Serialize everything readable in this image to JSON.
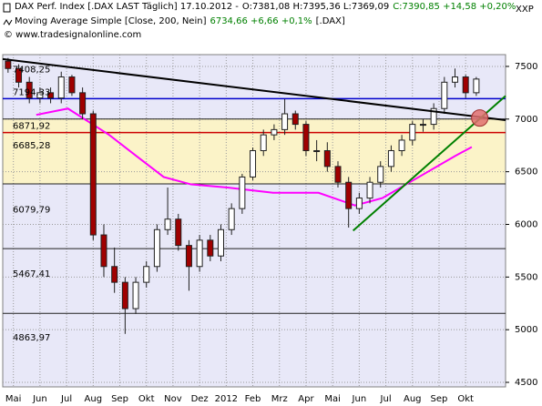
{
  "header": {
    "instrument": "DAX Perf. Index [.DAX LAST Täglich] 17.10.2012 -",
    "ohl": "O:7381,08 H:7395,36 L:7369,09",
    "close_change": "C:7390,85 +14,58 +0,20%",
    "indicator": "Moving Average Simple [Close, 200, Nein]",
    "indicator_value": "6734,66 +6,66 +0,1%",
    "indicator_symbol": "[.DAX]",
    "copyright": "© www.tradesignalonline.com",
    "corner": "XXP"
  },
  "chart_data": {
    "type": "candlestick",
    "x": [
      -0.2,
      0.2,
      0.6,
      1.0,
      1.4,
      1.8,
      2.2,
      2.6,
      3.0,
      3.4,
      3.8,
      4.2,
      4.6,
      5.0,
      5.4,
      5.8,
      6.2,
      6.6,
      7.0,
      7.4,
      7.8,
      8.2,
      8.6,
      9.0,
      9.4,
      9.8,
      10.2,
      10.6,
      11.0,
      11.4,
      11.8,
      12.2,
      12.6,
      13.0,
      13.4,
      13.8,
      14.2,
      14.6,
      15.0,
      15.4,
      15.8,
      16.2,
      16.6,
      17.0,
      17.4
    ],
    "open": [
      7550,
      7480,
      7350,
      7200,
      7250,
      7200,
      7400,
      7250,
      7050,
      5900,
      5600,
      5450,
      5200,
      5450,
      5600,
      5950,
      6050,
      5800,
      5600,
      5850,
      5700,
      5950,
      6150,
      6450,
      6700,
      6850,
      6900,
      7050,
      6950,
      6700,
      6700,
      6550,
      6400,
      6150,
      6250,
      6400,
      6550,
      6700,
      6800,
      6950,
      6950,
      7100,
      7350,
      7400,
      7250
    ],
    "high": [
      7580,
      7520,
      7400,
      7300,
      7300,
      7450,
      7420,
      7300,
      7080,
      6000,
      5780,
      5500,
      5500,
      5650,
      6000,
      6350,
      6100,
      5850,
      5900,
      5900,
      6000,
      6200,
      6480,
      6730,
      6900,
      6950,
      7190,
      7080,
      6980,
      6800,
      6780,
      6600,
      6450,
      6300,
      6450,
      6600,
      6750,
      6850,
      6980,
      7000,
      7150,
      7400,
      7480,
      7420,
      7400
    ],
    "low": [
      7440,
      7300,
      7150,
      7150,
      7150,
      7150,
      7220,
      7000,
      5850,
      5500,
      5350,
      4960,
      5150,
      5400,
      5550,
      5900,
      5750,
      5370,
      5550,
      5650,
      5650,
      5900,
      6100,
      6420,
      6650,
      6800,
      6850,
      6900,
      6650,
      6600,
      6500,
      6350,
      5970,
      6100,
      6200,
      6350,
      6500,
      6650,
      6750,
      6880,
      6900,
      7050,
      7300,
      7200,
      7220
    ],
    "close": [
      7480,
      7350,
      7200,
      7250,
      7200,
      7400,
      7250,
      7050,
      5900,
      5600,
      5450,
      5200,
      5450,
      5600,
      5950,
      6050,
      5800,
      5600,
      5850,
      5700,
      5950,
      6150,
      6450,
      6700,
      6850,
      6900,
      7050,
      6950,
      6700,
      6700,
      6550,
      6400,
      6150,
      6250,
      6400,
      6550,
      6700,
      6800,
      6950,
      6950,
      7100,
      7350,
      7400,
      7250,
      7380
    ],
    "up_color": "#ffffff",
    "down_color": "#a00000",
    "wick_color": "#202020",
    "moving_average": {
      "color": "#ff00ff",
      "x": [
        0.86,
        2.05,
        3.6,
        4.62,
        5.65,
        6.68,
        8.05,
        9.76,
        11.47,
        12.84,
        13.87,
        15.24,
        16.61,
        17.23
      ],
      "values": [
        7040,
        7100,
        6850,
        6650,
        6450,
        6380,
        6350,
        6300,
        6300,
        6180,
        6250,
        6450,
        6650,
        6735
      ]
    },
    "trendlines": [
      {
        "color": "#000000",
        "x": [
          -0.4,
          18.5
        ],
        "values": [
          7570,
          6990
        ]
      },
      {
        "color": "#008000",
        "x": [
          12.77,
          18.5
        ],
        "values": [
          5940,
          7220
        ]
      }
    ],
    "marker": {
      "x": 17.53,
      "value": 7010,
      "color": "#e07070"
    },
    "levels": [
      {
        "value": 7408.25,
        "label": "7408,25",
        "color": "#000000",
        "line": false
      },
      {
        "value": 7194.33,
        "label": "7194,33",
        "color": "#0000cc",
        "line": true
      },
      {
        "value": 6871.92,
        "label": "6871,92",
        "color": "#cc0000",
        "line": true
      },
      {
        "value": 6685.28,
        "label": "6685,28",
        "color": "#000000",
        "line": false
      },
      {
        "value": 6079.79,
        "label": "6079,79",
        "color": "#000000",
        "line": false
      },
      {
        "value": 5467.41,
        "label": "5467,41",
        "color": "#000000",
        "line": false
      },
      {
        "value": 4863.97,
        "label": "4863,97",
        "color": "#000000",
        "line": false
      }
    ],
    "zone_lines": [
      7000,
      6385,
      5770,
      5155
    ],
    "highlight_zone": [
      6385,
      7000
    ],
    "xlim": [
      -0.4,
      18.5
    ],
    "ylim": [
      4457,
      7612
    ],
    "xticks": [
      {
        "value": 0,
        "label": "Mai"
      },
      {
        "value": 1,
        "label": "Jun"
      },
      {
        "value": 2,
        "label": "Jul"
      },
      {
        "value": 3,
        "label": "Aug"
      },
      {
        "value": 4,
        "label": "Sep"
      },
      {
        "value": 5,
        "label": "Okt"
      },
      {
        "value": 6,
        "label": "Nov"
      },
      {
        "value": 7,
        "label": "Dez"
      },
      {
        "value": 8,
        "label": "2012"
      },
      {
        "value": 9,
        "label": "Feb"
      },
      {
        "value": 10,
        "label": "Mrz"
      },
      {
        "value": 11,
        "label": "Apr"
      },
      {
        "value": 12,
        "label": "Mai"
      },
      {
        "value": 13,
        "label": "Jun"
      },
      {
        "value": 14,
        "label": "Jul"
      },
      {
        "value": 15,
        "label": "Aug"
      },
      {
        "value": 16,
        "label": "Sep"
      },
      {
        "value": 17,
        "label": "Okt"
      }
    ],
    "yticks": [
      4500,
      5000,
      5500,
      6000,
      6500,
      7000,
      7500
    ],
    "grid": true
  }
}
